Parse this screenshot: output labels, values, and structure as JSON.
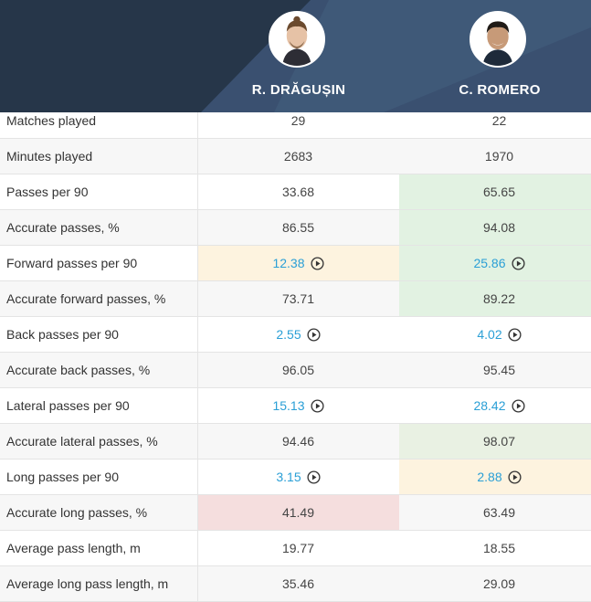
{
  "colors": {
    "header_bg": "#2c3e55",
    "link": "#2a9fd6",
    "best_green": "#e2f2e2",
    "light_green": "#e9f1e3",
    "warning_yellow": "#fdf3df",
    "bad_red": "#f5dede"
  },
  "players": [
    {
      "name": "R. DRĂGUȘIN",
      "avatar_icon": "player-photo"
    },
    {
      "name": "C. ROMERO",
      "avatar_icon": "player-photo"
    }
  ],
  "rows": [
    {
      "label": "Matches played",
      "v1": "29",
      "v2": "22",
      "link": false,
      "bg1": "",
      "bg2": ""
    },
    {
      "label": "Minutes played",
      "v1": "2683",
      "v2": "1970",
      "link": false,
      "bg1": "",
      "bg2": ""
    },
    {
      "label": "Passes per 90",
      "v1": "33.68",
      "v2": "65.65",
      "link": false,
      "bg1": "",
      "bg2": "#e2f2e2"
    },
    {
      "label": "Accurate passes, %",
      "v1": "86.55",
      "v2": "94.08",
      "link": false,
      "bg1": "",
      "bg2": "#e2f2e2"
    },
    {
      "label": "Forward passes per 90",
      "v1": "12.38",
      "v2": "25.86",
      "link": true,
      "bg1": "#fdf3df",
      "bg2": "#e2f2e2"
    },
    {
      "label": "Accurate forward passes, %",
      "v1": "73.71",
      "v2": "89.22",
      "link": false,
      "bg1": "",
      "bg2": "#e2f2e2"
    },
    {
      "label": "Back passes per 90",
      "v1": "2.55",
      "v2": "4.02",
      "link": true,
      "bg1": "",
      "bg2": ""
    },
    {
      "label": "Accurate back passes, %",
      "v1": "96.05",
      "v2": "95.45",
      "link": false,
      "bg1": "",
      "bg2": ""
    },
    {
      "label": "Lateral passes per 90",
      "v1": "15.13",
      "v2": "28.42",
      "link": true,
      "bg1": "",
      "bg2": ""
    },
    {
      "label": "Accurate lateral passes, %",
      "v1": "94.46",
      "v2": "98.07",
      "link": false,
      "bg1": "",
      "bg2": "#e9f1e3"
    },
    {
      "label": "Long passes per 90",
      "v1": "3.15",
      "v2": "2.88",
      "link": true,
      "bg1": "",
      "bg2": "#fdf3df"
    },
    {
      "label": "Accurate long passes, %",
      "v1": "41.49",
      "v2": "63.49",
      "link": false,
      "bg1": "#f5dede",
      "bg2": ""
    },
    {
      "label": "Average pass length, m",
      "v1": "19.77",
      "v2": "18.55",
      "link": false,
      "bg1": "",
      "bg2": ""
    },
    {
      "label": "Average long pass length, m",
      "v1": "35.46",
      "v2": "29.09",
      "link": false,
      "bg1": "",
      "bg2": ""
    }
  ]
}
